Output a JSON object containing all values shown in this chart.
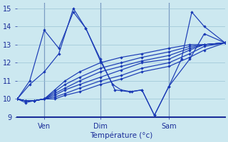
{
  "xlabel": "Température (°c)",
  "background_color": "#cce8f0",
  "line_color": "#1a3ab5",
  "grid_color": "#9ac4d4",
  "ylim": [
    9,
    15.3
  ],
  "yticks": [
    9,
    10,
    11,
    12,
    13,
    14,
    15
  ],
  "xtick_labels": [
    "Ven",
    "Dim",
    "Sam"
  ],
  "xtick_pos": [
    0.13,
    0.4,
    0.73
  ],
  "vline_pos": [
    0.13,
    0.4,
    0.73
  ],
  "series": [
    {
      "x": [
        0.0,
        0.04,
        0.08,
        0.13,
        0.18,
        0.23,
        0.3,
        0.4,
        0.5,
        0.6,
        0.73,
        0.83,
        0.9,
        1.0
      ],
      "y": [
        10.0,
        9.9,
        9.9,
        10.0,
        10.5,
        11.0,
        11.5,
        12.0,
        12.3,
        12.5,
        12.8,
        13.0,
        13.0,
        13.1
      ]
    },
    {
      "x": [
        0.0,
        0.04,
        0.08,
        0.13,
        0.18,
        0.23,
        0.3,
        0.4,
        0.5,
        0.6,
        0.73,
        0.83,
        0.9,
        1.0
      ],
      "y": [
        10.0,
        9.9,
        9.9,
        10.0,
        10.4,
        10.8,
        11.2,
        11.7,
        12.0,
        12.3,
        12.6,
        12.9,
        13.0,
        13.1
      ]
    },
    {
      "x": [
        0.0,
        0.04,
        0.08,
        0.13,
        0.18,
        0.23,
        0.3,
        0.4,
        0.5,
        0.6,
        0.73,
        0.83,
        0.9,
        1.0
      ],
      "y": [
        10.0,
        9.9,
        9.9,
        10.0,
        10.3,
        10.6,
        11.0,
        11.5,
        11.8,
        12.1,
        12.4,
        12.8,
        13.0,
        13.1
      ]
    },
    {
      "x": [
        0.0,
        0.04,
        0.08,
        0.13,
        0.18,
        0.23,
        0.3,
        0.4,
        0.5,
        0.6,
        0.73,
        0.83,
        0.9,
        1.0
      ],
      "y": [
        10.0,
        9.9,
        9.9,
        10.0,
        10.2,
        10.5,
        10.8,
        11.2,
        11.6,
        12.0,
        12.2,
        12.7,
        13.0,
        13.1
      ]
    },
    {
      "x": [
        0.0,
        0.04,
        0.08,
        0.13,
        0.18,
        0.23,
        0.3,
        0.4,
        0.5,
        0.6,
        0.73,
        0.83,
        0.9,
        1.0
      ],
      "y": [
        10.0,
        9.9,
        9.9,
        10.0,
        10.1,
        10.3,
        10.6,
        11.0,
        11.3,
        11.7,
        12.0,
        12.5,
        12.9,
        13.1
      ]
    },
    {
      "x": [
        0.0,
        0.04,
        0.08,
        0.13,
        0.18,
        0.23,
        0.3,
        0.4,
        0.5,
        0.6,
        0.73,
        0.83,
        0.9,
        1.0
      ],
      "y": [
        10.0,
        9.8,
        9.9,
        10.0,
        10.0,
        10.2,
        10.4,
        10.8,
        11.1,
        11.5,
        11.8,
        12.3,
        12.7,
        13.1
      ]
    },
    {
      "x": [
        0.0,
        0.06,
        0.13,
        0.2,
        0.27,
        0.33,
        0.4,
        0.46,
        0.5,
        0.55,
        0.6,
        0.66,
        0.73,
        0.79,
        0.84,
        0.9,
        1.0
      ],
      "y": [
        10.0,
        11.0,
        13.8,
        12.8,
        14.8,
        13.9,
        12.1,
        10.8,
        10.5,
        10.4,
        10.5,
        9.1,
        10.7,
        12.2,
        14.8,
        14.0,
        13.1
      ]
    },
    {
      "x": [
        0.0,
        0.06,
        0.13,
        0.2,
        0.27,
        0.33,
        0.4,
        0.47,
        0.54,
        0.6,
        0.66,
        0.73,
        0.83,
        0.9,
        1.0
      ],
      "y": [
        10.0,
        10.8,
        11.5,
        12.5,
        15.0,
        13.9,
        12.2,
        10.5,
        10.4,
        10.5,
        9.1,
        10.7,
        12.2,
        13.6,
        13.1
      ]
    }
  ]
}
